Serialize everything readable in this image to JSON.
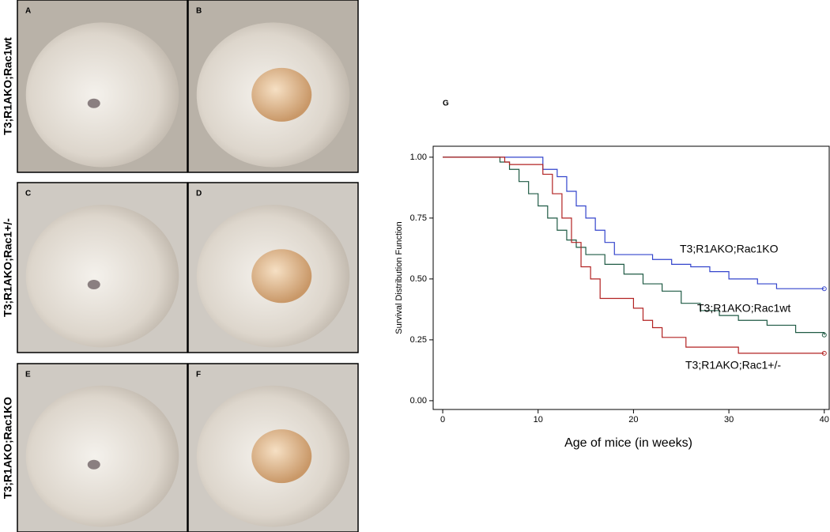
{
  "photo_panels": [
    {
      "label": "A"
    },
    {
      "label": "B"
    },
    {
      "label": "C"
    },
    {
      "label": "D"
    },
    {
      "label": "E"
    },
    {
      "label": "F"
    }
  ],
  "row_labels": [
    "T3;R1AKO;Rac1wt",
    "T3;R1AKO;Rac1+/-",
    "T3;R1AKO;Rac1KO"
  ],
  "chart_data": {
    "type": "line",
    "drawstyle": "steps-post",
    "panel_label": "G",
    "x_label": "Age of mice (in weeks)",
    "y_label": "Survival Distribution Function",
    "xlim": [
      -1,
      40.6
    ],
    "xticks": [
      0,
      10,
      20,
      30,
      40
    ],
    "ylim": [
      -0.036,
      1.045
    ],
    "yticks": [
      {
        "value": 0,
        "label": "0.00"
      },
      {
        "value": 0.25,
        "label": "0.25"
      },
      {
        "value": 0.5,
        "label": "0.50"
      },
      {
        "value": 0.75,
        "label": "0.75"
      },
      {
        "value": 1,
        "label": "1.00"
      }
    ],
    "end_markers": true,
    "series": [
      {
        "name": "T3;R1AKO;Rac1KO",
        "color": "#3344cc",
        "x": [
          0,
          10.5,
          12,
          13,
          14,
          15,
          16,
          17,
          18,
          20,
          22,
          24,
          26,
          28,
          30,
          33,
          35,
          40
        ],
        "values": [
          1.0,
          0.95,
          0.92,
          0.86,
          0.8,
          0.75,
          0.7,
          0.65,
          0.6,
          0.6,
          0.58,
          0.56,
          0.55,
          0.53,
          0.5,
          0.48,
          0.46,
          0.46
        ]
      },
      {
        "name": "T3;R1AKO;Rac1wt",
        "color": "#1f5a44",
        "x": [
          0,
          6,
          7,
          8,
          9,
          10,
          11,
          12,
          13,
          14,
          15,
          17,
          19,
          21,
          23,
          25,
          27,
          29,
          31,
          34,
          37,
          40
        ],
        "values": [
          1.0,
          0.98,
          0.95,
          0.9,
          0.85,
          0.8,
          0.75,
          0.7,
          0.66,
          0.63,
          0.6,
          0.56,
          0.52,
          0.48,
          0.45,
          0.4,
          0.37,
          0.35,
          0.33,
          0.31,
          0.28,
          0.27
        ]
      },
      {
        "name": "T3;R1AKO;Rac1+/-",
        "color": "#b22222",
        "x": [
          0,
          6.5,
          7,
          10.5,
          11.5,
          12.5,
          13.5,
          14.5,
          15.5,
          16.5,
          20,
          21,
          22,
          23,
          25.5,
          31,
          40
        ],
        "values": [
          1.0,
          0.98,
          0.97,
          0.93,
          0.85,
          0.75,
          0.65,
          0.55,
          0.5,
          0.42,
          0.38,
          0.33,
          0.3,
          0.26,
          0.22,
          0.195,
          0.195
        ]
      }
    ]
  }
}
